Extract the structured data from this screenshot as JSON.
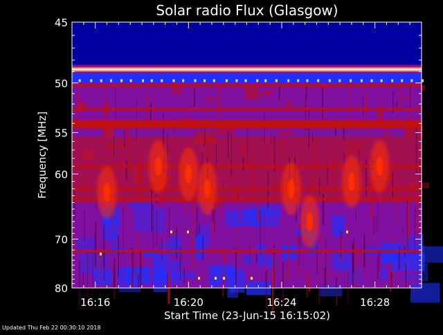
{
  "chart_data": {
    "type": "heatmap",
    "title": "Solar radio Flux (Glasgow)",
    "xlabel": "Start Time (23-Jun-15 16:15:02)",
    "ylabel": "Frequency [MHz]",
    "x_ticks": [
      "16:16",
      "16:20",
      "16:24",
      "16:28"
    ],
    "x_tick_minutes": [
      1.0,
      5.0,
      9.0,
      13.0
    ],
    "x_range_minutes": [
      0,
      15
    ],
    "y_ticks": [
      45,
      50,
      55,
      60,
      70,
      80
    ],
    "y_range": [
      45,
      80
    ],
    "y_scale": "reciprocal",
    "colormap": [
      "#0000a0",
      "#2030ff",
      "#8010a0",
      "#c01010",
      "#ff3000",
      "#ffd070",
      "#ffffff"
    ],
    "bright_bands_mhz": [
      48.8
    ],
    "band_lines_mhz": [
      50.2,
      52.5,
      53.9,
      54.3,
      59.0,
      62.0,
      63.5,
      72.2
    ],
    "bursts": [
      {
        "t": 1.5,
        "f": 62.5
      },
      {
        "t": 3.7,
        "f": 59.0
      },
      {
        "t": 5.0,
        "f": 60.0
      },
      {
        "t": 5.8,
        "f": 62.0
      },
      {
        "t": 9.4,
        "f": 62.0
      },
      {
        "t": 10.2,
        "f": 67.0
      },
      {
        "t": 12.0,
        "f": 61.0
      },
      {
        "t": 13.2,
        "f": 59.0
      }
    ]
  },
  "footer": "Updated Thu Feb 22 00:30:10 2018"
}
